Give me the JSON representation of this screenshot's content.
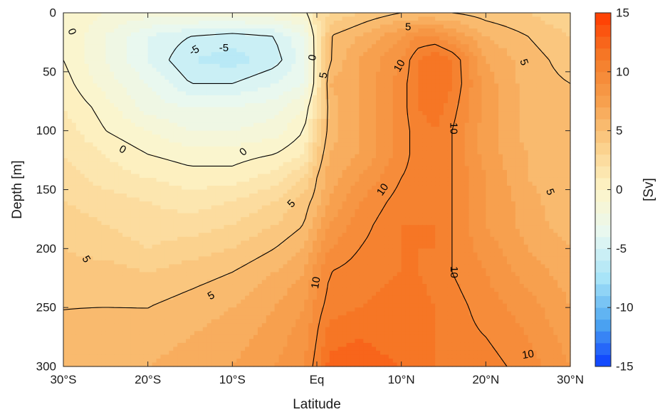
{
  "chart_data": {
    "type": "heatmap",
    "subtype": "filled contour",
    "title": "",
    "xlabel": "Latitude",
    "ylabel": "Depth [m]",
    "colorbar_label": "[Sv]",
    "xlim": [
      -30,
      30
    ],
    "ylim": [
      0,
      300
    ],
    "y_reversed": true,
    "clim": [
      -15,
      15
    ],
    "x_ticks": [
      {
        "value": -30,
        "label": "30°S"
      },
      {
        "value": -20,
        "label": "20°S"
      },
      {
        "value": -10,
        "label": "10°S"
      },
      {
        "value": 0,
        "label": "Eq"
      },
      {
        "value": 10,
        "label": "10°N"
      },
      {
        "value": 20,
        "label": "20°N"
      },
      {
        "value": 30,
        "label": "30°N"
      }
    ],
    "y_ticks": [
      0,
      50,
      100,
      150,
      200,
      250,
      300
    ],
    "colorbar_ticks": [
      15,
      10,
      5,
      0,
      -5,
      -10,
      -15
    ],
    "colormap": [
      "#0a3cff",
      "#4fa8f0",
      "#a8e4f8",
      "#e8f8f2",
      "#fdf5c8",
      "#fbd08a",
      "#f7a04e",
      "#f57a28",
      "#ff3a00"
    ],
    "contour_levels": [
      -5,
      0,
      5,
      10
    ],
    "x": [
      -30,
      -25,
      -20,
      -15,
      -10,
      -5,
      -1.5,
      0,
      1.5,
      5,
      10,
      12,
      14,
      16,
      20,
      25,
      30
    ],
    "depth": [
      0,
      20,
      40,
      60,
      80,
      100,
      120,
      140,
      160,
      180,
      200,
      220,
      250,
      275,
      300
    ],
    "values": [
      [
        0,
        -1,
        -1.5,
        -1.5,
        -1.5,
        -1,
        -0.5,
        2,
        3,
        4,
        5,
        5,
        5,
        5,
        4.5,
        4,
        3
      ],
      [
        0,
        -2,
        -4,
        -5,
        -5.5,
        -5,
        -3,
        1,
        5,
        6,
        8,
        9,
        9,
        8,
        6,
        5,
        4
      ],
      [
        0,
        -2,
        -4,
        -6,
        -6.5,
        -5.5,
        -3.5,
        1,
        5,
        7,
        9,
        11,
        12,
        11,
        7,
        5.5,
        4.5
      ],
      [
        0.5,
        -1.5,
        -3,
        -5,
        -5,
        -4,
        -3,
        1,
        6,
        7,
        9.5,
        11,
        12,
        11,
        7.5,
        5.5,
        5
      ],
      [
        1,
        -0.5,
        -2.5,
        -3,
        -3,
        -2.5,
        -1,
        2,
        5.5,
        7,
        9.5,
        11,
        11.5,
        10.5,
        7.5,
        5.5,
        5
      ],
      [
        1.5,
        0,
        -1,
        -2,
        -2,
        -1.5,
        0,
        3,
        5.5,
        7,
        9.5,
        10.5,
        11,
        10,
        7.5,
        5.5,
        5
      ],
      [
        2,
        1,
        0,
        -0.5,
        -0.5,
        0,
        1,
        4,
        6,
        7,
        9.5,
        10.5,
        11,
        10,
        7.5,
        6,
        5
      ],
      [
        2.5,
        1.5,
        1,
        0.5,
        0.5,
        1.5,
        3,
        5,
        6.5,
        8,
        10,
        10.5,
        11,
        10,
        8,
        6,
        5
      ],
      [
        3,
        2.5,
        2,
        1.5,
        2,
        3,
        4.5,
        5.5,
        7,
        9,
        10.5,
        10.5,
        10.5,
        10,
        8,
        6.5,
        5
      ],
      [
        3.5,
        3,
        2.5,
        2.5,
        3,
        4,
        5,
        6.5,
        8,
        9.5,
        11,
        11,
        11,
        10,
        8,
        6.5,
        5.5
      ],
      [
        4,
        3.5,
        3,
        3.5,
        4,
        5,
        6,
        7.5,
        9,
        10,
        11,
        11,
        11,
        10,
        8.5,
        7,
        6
      ],
      [
        4.5,
        4.5,
        4,
        4.5,
        5,
        6,
        7,
        8.5,
        10,
        10.5,
        11,
        11,
        10.5,
        10,
        9,
        7.5,
        6.5
      ],
      [
        5,
        5,
        5,
        5.5,
        6,
        7,
        8,
        9.5,
        10.5,
        11,
        11.5,
        11.5,
        11,
        10.5,
        9.5,
        8.5,
        7
      ],
      [
        5,
        5.5,
        5.5,
        6,
        6.5,
        7.5,
        8.5,
        10,
        11.5,
        12,
        11.5,
        11.5,
        11,
        10.5,
        10,
        9,
        7.5
      ],
      [
        5.5,
        6,
        6,
        6.5,
        7,
        8,
        9,
        10.5,
        12.5,
        12.5,
        12,
        11.5,
        11,
        11,
        10.5,
        9.5,
        8
      ]
    ],
    "contour_labels": [
      {
        "text": "0",
        "x": -29,
        "d": 16,
        "angle": 70
      },
      {
        "text": "-5",
        "x": -14.5,
        "d": 32,
        "angle": -30
      },
      {
        "text": "-5",
        "x": -11,
        "d": 30,
        "angle": 0
      },
      {
        "text": "0",
        "x": -0.5,
        "d": 38,
        "angle": -80
      },
      {
        "text": "5",
        "x": 10.8,
        "d": 12,
        "angle": 0
      },
      {
        "text": "5",
        "x": 0.8,
        "d": 53,
        "angle": -80
      },
      {
        "text": "10",
        "x": 9.8,
        "d": 45,
        "angle": -60
      },
      {
        "text": "5",
        "x": 24.5,
        "d": 42,
        "angle": 70
      },
      {
        "text": "0",
        "x": -23,
        "d": 116,
        "angle": 30
      },
      {
        "text": "0",
        "x": -8.7,
        "d": 118,
        "angle": -40
      },
      {
        "text": "10",
        "x": 16.2,
        "d": 98,
        "angle": 90
      },
      {
        "text": "5",
        "x": 27.6,
        "d": 152,
        "angle": 70
      },
      {
        "text": "5",
        "x": -3,
        "d": 162,
        "angle": -45
      },
      {
        "text": "10",
        "x": 7.8,
        "d": 150,
        "angle": -55
      },
      {
        "text": "5",
        "x": -27.3,
        "d": 209,
        "angle": 60
      },
      {
        "text": "10",
        "x": 16.2,
        "d": 220,
        "angle": 90
      },
      {
        "text": "5",
        "x": -12.5,
        "d": 240,
        "angle": -30
      },
      {
        "text": "10",
        "x": -0.1,
        "d": 229,
        "angle": -80
      },
      {
        "text": "10",
        "x": 25,
        "d": 290,
        "angle": -10
      }
    ]
  }
}
